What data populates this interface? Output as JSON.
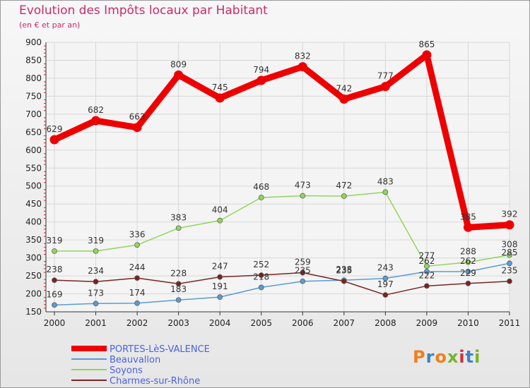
{
  "title": "Evolution des Impôts locaux par Habitant",
  "subtitle": "(en € et par an)",
  "logo": {
    "text": "Proxiti",
    "colors": [
      "#f07f1d",
      "#3d83c5",
      "#f07f1d",
      "#76b52c",
      "#d12f3a",
      "#3d83c5",
      "#76b52c"
    ]
  },
  "chart_data": {
    "type": "line",
    "x": [
      "2000",
      "2001",
      "2002",
      "2003",
      "2004",
      "2005",
      "2006",
      "2007",
      "2008",
      "2009",
      "2010",
      "2011"
    ],
    "ylim": [
      150,
      900
    ],
    "yticks": [
      150,
      200,
      250,
      300,
      350,
      400,
      450,
      500,
      550,
      600,
      650,
      700,
      750,
      800,
      850,
      900
    ],
    "grid": true,
    "legend_position": "bottom-left",
    "series": [
      {
        "name": "PORTES-LèS-VALENCE",
        "color": "#ee0000",
        "values": [
          629,
          682,
          663,
          809,
          745,
          794,
          832,
          742,
          777,
          865,
          385,
          392
        ]
      },
      {
        "name": "Beauvallon",
        "color": "#5a9bd3",
        "values": [
          169,
          173,
          174,
          183,
          191,
          218,
          235,
          238,
          243,
          262,
          262,
          285
        ]
      },
      {
        "name": "Soyons",
        "color": "#8fd65a",
        "values": [
          319,
          319,
          336,
          383,
          404,
          468,
          473,
          472,
          483,
          277,
          288,
          308
        ]
      },
      {
        "name": "Charmes-sur-Rhône",
        "color": "#7a2424",
        "values": [
          238,
          234,
          244,
          228,
          247,
          252,
          259,
          235,
          197,
          222,
          229,
          235
        ]
      }
    ]
  }
}
